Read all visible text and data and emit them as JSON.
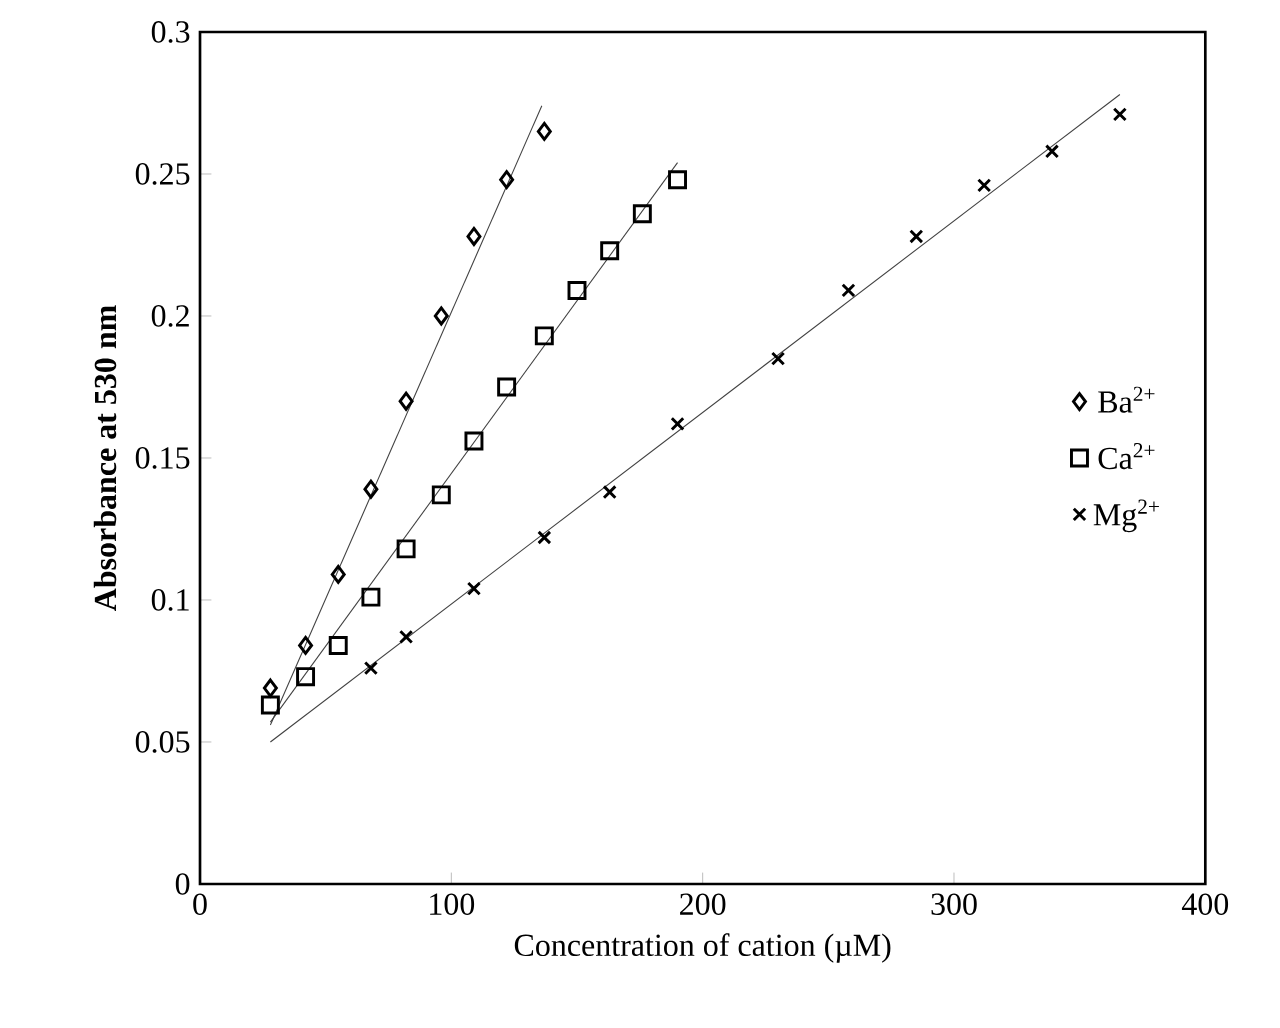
{
  "chart_data": {
    "type": "scatter",
    "xlabel": "Concentration of cation (µM)",
    "ylabel": "Absorbance at 530 nm",
    "xlim": [
      0,
      400
    ],
    "xticks": [
      0,
      100,
      200,
      300,
      400
    ],
    "ylim": [
      0,
      0.3
    ],
    "yticks": [
      0,
      0.05,
      0.1,
      0.15,
      0.2,
      0.25,
      0.3
    ],
    "legend": "right",
    "grid": false,
    "series": [
      {
        "name": "Ba$^{2+}$",
        "color": "#000000",
        "marker": "diamond",
        "x": [
          28,
          42,
          55,
          68,
          82,
          96,
          109,
          122,
          137
        ],
        "values": [
          0.069,
          0.084,
          0.109,
          0.139,
          0.17,
          0.2,
          0.228,
          0.248,
          0.265
        ]
      },
      {
        "name": "Ca$^{2+}$",
        "color": "#000000",
        "marker": "square",
        "x": [
          28,
          42,
          55,
          68,
          82,
          96,
          109,
          122,
          137,
          150,
          163,
          176,
          190
        ],
        "values": [
          0.063,
          0.073,
          0.084,
          0.101,
          0.118,
          0.137,
          0.156,
          0.175,
          0.193,
          0.209,
          0.223,
          0.236,
          0.248
        ]
      },
      {
        "name": "Mg$^{2+}$",
        "color": "#000000",
        "marker": "cross",
        "x": [
          68,
          82,
          109,
          137,
          163,
          190,
          230,
          258,
          285,
          312,
          339,
          366
        ],
        "values": [
          0.076,
          0.087,
          0.104,
          0.122,
          0.138,
          0.162,
          0.185,
          0.209,
          0.228,
          0.246,
          0.258,
          0.271
        ]
      },
      {
        "type": "line",
        "color": "#404040",
        "line_style": "solid",
        "marker": "none",
        "x": [
          28,
          136
        ],
        "values": [
          0.056,
          0.274
        ]
      },
      {
        "type": "line",
        "color": "#404040",
        "line_style": "solid",
        "marker": "none",
        "x": [
          28,
          190
        ],
        "values": [
          0.057,
          0.254
        ]
      },
      {
        "type": "line",
        "color": "#404040",
        "line_style": "solid",
        "marker": "none",
        "x": [
          28,
          366
        ],
        "values": [
          0.05,
          0.278
        ]
      }
    ]
  }
}
